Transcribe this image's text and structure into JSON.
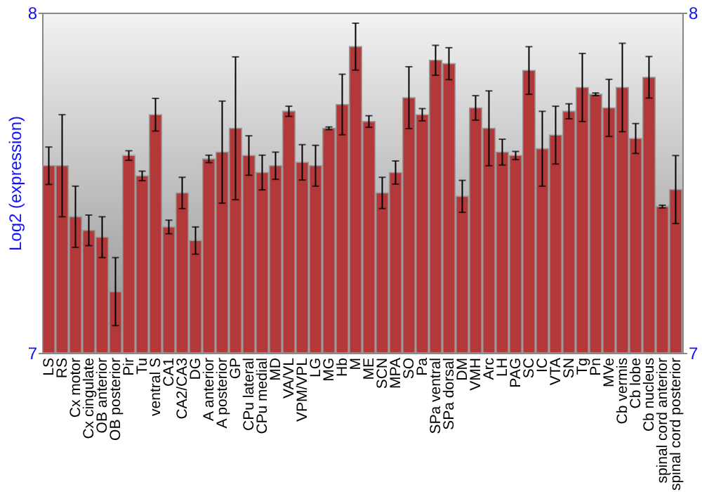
{
  "chart_data": {
    "type": "bar",
    "ylabel": "Log2 (expression)",
    "categories": [
      "LS",
      "RS",
      "Cx motor",
      "Cx cingulate",
      "OB anterior",
      "OB posterior",
      "Pir",
      "Tu",
      "ventral S",
      "CA1",
      "CA2/CA3",
      "DG",
      "A anterior",
      "A posterior",
      "GP",
      "CPu lateral",
      "CPu medial",
      "MD",
      "VA/VL",
      "VPM/VPL",
      "LG",
      "MG",
      "Hb",
      "M",
      "ME",
      "SCN",
      "MPA",
      "SO",
      "Pa",
      "SPa ventral",
      "SPa dorsal",
      "DM",
      "VMH",
      "Arc",
      "LH",
      "PAG",
      "SC",
      "IC",
      "VTA",
      "SN",
      "Tg",
      "Pn",
      "MVe",
      "Cb vermis",
      "Cb lobe",
      "Cb nucleus",
      "spinal cord anterior",
      "spinal cord posterior"
    ],
    "series": [
      {
        "color": "#b3383a",
        "values": [
          7.55,
          7.55,
          7.4,
          7.36,
          7.34,
          7.18,
          7.58,
          7.52,
          7.7,
          7.37,
          7.47,
          7.33,
          7.57,
          7.59,
          7.66,
          7.58,
          7.53,
          7.55,
          7.71,
          7.56,
          7.55,
          7.66,
          7.73,
          7.9,
          7.68,
          7.47,
          7.53,
          7.75,
          7.7,
          7.86,
          7.85,
          7.46,
          7.72,
          7.66,
          7.59,
          7.58,
          7.83,
          7.6,
          7.64,
          7.71,
          7.78,
          7.76,
          7.72,
          7.78,
          7.63,
          7.81,
          7.43,
          7.48
        ],
        "errors": [
          0.055,
          0.15,
          0.09,
          0.045,
          0.06,
          0.1,
          0.014,
          0.014,
          0.048,
          0.02,
          0.046,
          0.04,
          0.011,
          0.15,
          0.21,
          0.058,
          0.051,
          0.04,
          0.015,
          0.052,
          0.06,
          0.004,
          0.089,
          0.069,
          0.017,
          0.046,
          0.034,
          0.091,
          0.018,
          0.044,
          0.047,
          0.047,
          0.036,
          0.11,
          0.038,
          0.012,
          0.07,
          0.11,
          0.085,
          0.022,
          0.1,
          0.004,
          0.084,
          0.13,
          0.044,
          0.061,
          0.004,
          0.1
        ]
      }
    ],
    "ylim": [
      7,
      8
    ],
    "yticks": [
      7,
      8
    ],
    "y2lim": [
      7,
      8
    ],
    "y2ticks": [
      7,
      8
    ],
    "grid": false
  }
}
